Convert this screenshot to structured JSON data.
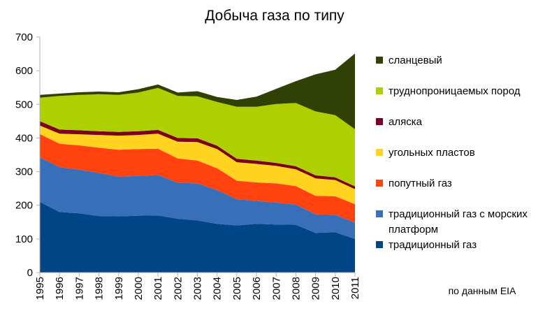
{
  "chart_data": {
    "type": "area",
    "stacked": true,
    "title": "Добыча газа по типу",
    "xlabel": "",
    "ylabel": "",
    "ylim": [
      0,
      700
    ],
    "yticks": [
      0,
      100,
      200,
      300,
      400,
      500,
      600,
      700
    ],
    "grid": false,
    "legend_position": "right",
    "source_note": "по данным EIA",
    "x": [
      "1995",
      "1996",
      "1997",
      "1998",
      "1999",
      "2000",
      "2001",
      "2002",
      "2003",
      "2004",
      "2005",
      "2006",
      "2007",
      "2008",
      "2009",
      "2010",
      "2011"
    ],
    "series": [
      {
        "name": "традиционный газ",
        "color": "#004586",
        "label_lines": [
          "традиционный газ"
        ],
        "values": [
          210,
          180,
          176,
          168,
          167,
          169,
          170,
          160,
          155,
          145,
          140,
          145,
          143,
          142,
          118,
          120,
          100
        ]
      },
      {
        "name": "традиционный газ с морских платформ",
        "color": "#386fb8",
        "label_lines": [
          "традиционный газ с морских",
          "платформ"
        ],
        "values": [
          132,
          133,
          130,
          128,
          118,
          118,
          120,
          107,
          110,
          100,
          78,
          68,
          65,
          60,
          55,
          52,
          48
        ]
      },
      {
        "name": "попутный газ",
        "color": "#ff420e",
        "label_lines": [
          "попутный газ"
        ],
        "values": [
          70,
          70,
          72,
          75,
          80,
          80,
          78,
          72,
          68,
          65,
          55,
          55,
          57,
          55,
          55,
          55,
          55
        ]
      },
      {
        "name": "угольных пластов",
        "color": "#ffd320",
        "label_lines": [
          "угольных пластов"
        ],
        "values": [
          25,
          30,
          33,
          38,
          42,
          42,
          45,
          50,
          55,
          57,
          55,
          55,
          52,
          50,
          52,
          48,
          45
        ]
      },
      {
        "name": "аляска",
        "color": "#7e0021",
        "label_lines": [
          "аляска"
        ],
        "values": [
          13,
          12,
          12,
          11,
          11,
          11,
          11,
          11,
          11,
          10,
          10,
          10,
          9,
          9,
          9,
          8,
          8
        ]
      },
      {
        "name": "труднопроницаемых пород",
        "color": "#aecf00",
        "label_lines": [
          "труднопроницаемых пород"
        ],
        "values": [
          70,
          100,
          105,
          110,
          110,
          115,
          125,
          125,
          125,
          130,
          155,
          160,
          175,
          188,
          190,
          185,
          170
        ]
      },
      {
        "name": "сланцевый",
        "color": "#314004",
        "label_lines": [
          "сланцевый"
        ],
        "values": [
          8,
          7,
          8,
          8,
          8,
          10,
          10,
          10,
          15,
          15,
          20,
          30,
          45,
          65,
          110,
          135,
          225
        ]
      }
    ]
  }
}
